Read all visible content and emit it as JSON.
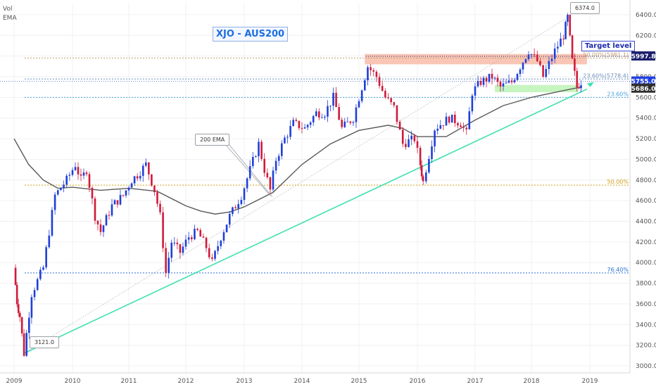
{
  "header": {
    "vol": "Vol",
    "ema": "EMA",
    "title": "XJO - AUS200"
  },
  "annotations": {
    "target_level": "Target level",
    "ema_label": "200 EMA",
    "low_marker": "3121.0",
    "high_marker": "6374.0"
  },
  "chart_data": {
    "type": "candlestick",
    "title": "XJO - AUS200",
    "ylim": [
      2950,
      6550
    ],
    "y_ticks": [
      "3000.0",
      "3200.0",
      "3400.0",
      "3600.0",
      "3800.0",
      "4000.0",
      "4200.0",
      "4400.0",
      "4600.0",
      "4800.0",
      "5000.0",
      "5200.0",
      "5400.0",
      "5600.0",
      "5800.0",
      "6000.0",
      "6200.0",
      "6400.0"
    ],
    "x_ticks": [
      "2009",
      "2010",
      "2011",
      "2012",
      "2013",
      "2014",
      "2015",
      "2016",
      "2017",
      "2018",
      "2019"
    ],
    "price_path": [
      [
        2009.0,
        3950
      ],
      [
        2009.05,
        3620
      ],
      [
        2009.1,
        3480
      ],
      [
        2009.17,
        3121
      ],
      [
        2009.3,
        3700
      ],
      [
        2009.5,
        3950
      ],
      [
        2009.7,
        4650
      ],
      [
        2009.9,
        4800
      ],
      [
        2010.05,
        4950
      ],
      [
        2010.15,
        4800
      ],
      [
        2010.25,
        4900
      ],
      [
        2010.4,
        4450
      ],
      [
        2010.5,
        4300
      ],
      [
        2010.7,
        4550
      ],
      [
        2010.9,
        4650
      ],
      [
        2011.05,
        4800
      ],
      [
        2011.15,
        4850
      ],
      [
        2011.3,
        4950
      ],
      [
        2011.45,
        4700
      ],
      [
        2011.55,
        4450
      ],
      [
        2011.65,
        3900
      ],
      [
        2011.75,
        4200
      ],
      [
        2011.9,
        4100
      ],
      [
        2012.05,
        4250
      ],
      [
        2012.2,
        4300
      ],
      [
        2012.35,
        4150
      ],
      [
        2012.45,
        4000
      ],
      [
        2012.6,
        4250
      ],
      [
        2012.75,
        4450
      ],
      [
        2012.95,
        4650
      ],
      [
        2013.1,
        4900
      ],
      [
        2013.25,
        5150
      ],
      [
        2013.35,
        4900
      ],
      [
        2013.45,
        4700
      ],
      [
        2013.55,
        5000
      ],
      [
        2013.7,
        5200
      ],
      [
        2013.85,
        5350
      ],
      [
        2014.05,
        5300
      ],
      [
        2014.25,
        5450
      ],
      [
        2014.4,
        5450
      ],
      [
        2014.55,
        5600
      ],
      [
        2014.7,
        5300
      ],
      [
        2014.9,
        5400
      ],
      [
        2015.05,
        5700
      ],
      [
        2015.15,
        5900
      ],
      [
        2015.3,
        5800
      ],
      [
        2015.45,
        5600
      ],
      [
        2015.6,
        5500
      ],
      [
        2015.75,
        5150
      ],
      [
        2015.95,
        5200
      ],
      [
        2016.05,
        4950
      ],
      [
        2016.1,
        4780
      ],
      [
        2016.3,
        5300
      ],
      [
        2016.55,
        5400
      ],
      [
        2016.75,
        5350
      ],
      [
        2016.85,
        5250
      ],
      [
        2016.95,
        5650
      ],
      [
        2017.1,
        5750
      ],
      [
        2017.3,
        5800
      ],
      [
        2017.45,
        5700
      ],
      [
        2017.65,
        5750
      ],
      [
        2017.85,
        5950
      ],
      [
        2017.95,
        6050
      ],
      [
        2018.1,
        5950
      ],
      [
        2018.2,
        5800
      ],
      [
        2018.4,
        6050
      ],
      [
        2018.55,
        6200
      ],
      [
        2018.62,
        6374
      ],
      [
        2018.7,
        5950
      ],
      [
        2018.78,
        5700
      ],
      [
        2018.85,
        5750
      ]
    ],
    "ema_200": [
      [
        2009.0,
        5200
      ],
      [
        2009.25,
        4950
      ],
      [
        2009.5,
        4800
      ],
      [
        2009.75,
        4720
      ],
      [
        2010.0,
        4730
      ],
      [
        2010.5,
        4700
      ],
      [
        2011.0,
        4720
      ],
      [
        2011.5,
        4690
      ],
      [
        2012.0,
        4550
      ],
      [
        2012.25,
        4500
      ],
      [
        2012.5,
        4470
      ],
      [
        2012.75,
        4490
      ],
      [
        2013.0,
        4540
      ],
      [
        2013.5,
        4680
      ],
      [
        2014.0,
        4950
      ],
      [
        2014.5,
        5150
      ],
      [
        2015.0,
        5280
      ],
      [
        2015.5,
        5330
      ],
      [
        2015.75,
        5300
      ],
      [
        2016.0,
        5220
      ],
      [
        2016.5,
        5220
      ],
      [
        2017.0,
        5380
      ],
      [
        2017.5,
        5520
      ],
      [
        2018.0,
        5600
      ],
      [
        2018.5,
        5660
      ],
      [
        2018.85,
        5700
      ]
    ],
    "trendline": [
      [
        2009.17,
        3121
      ],
      [
        2018.95,
        5680
      ]
    ],
    "channel_line": [
      [
        2009.17,
        3121
      ],
      [
        2018.62,
        6374
      ]
    ],
    "ema_callout_target": [
      2013.45,
      4650
    ],
    "fib_levels": [
      {
        "label": "50.00%(5981.1)",
        "value": 5981,
        "color": "#c2a070"
      },
      {
        "label": "23.60%(5778.4)",
        "value": 5778,
        "color": "#6f8fbf"
      },
      {
        "label": "23.60%",
        "value": 5600,
        "color": "#4aa3df"
      },
      {
        "label": "50.00%",
        "value": 4750,
        "color": "#d4a017"
      },
      {
        "label": "76.40%",
        "value": 3900,
        "color": "#2c6fd8"
      }
    ],
    "zones": [
      {
        "x0": 2015.1,
        "x1": 2018.95,
        "y0": 5920,
        "y1": 6020,
        "color": "#f7b7a3"
      },
      {
        "x0": 2017.35,
        "x1": 2018.8,
        "y0": 5650,
        "y1": 5720,
        "color": "#b9f2b0"
      }
    ],
    "price_tags": [
      {
        "value": 5997.8,
        "label": "5997.8",
        "color": "#1a1f6b"
      },
      {
        "value": 5755.0,
        "label": "5755.0",
        "color": "#1e3fe0"
      },
      {
        "value": 5686.0,
        "label": "5686.0",
        "color": "#2f2f2f"
      }
    ],
    "colors": {
      "up": "#1e3fd8",
      "down": "#d01a3a",
      "ema": "#5a5a5a",
      "trend": "#40e0b0",
      "channel": "#b0b0b0"
    }
  }
}
